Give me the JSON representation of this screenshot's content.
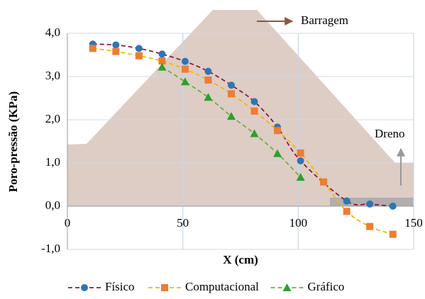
{
  "chart_data": {
    "type": "line",
    "xlabel": "X (cm)",
    "ylabel": "Poro-pressão (KPa)",
    "annotations": [
      "Barragem",
      "Dreno"
    ],
    "xlim": [
      0,
      150
    ],
    "xticks": [
      0,
      50,
      100,
      150
    ],
    "ylim": [
      -1,
      4.5
    ],
    "yticks": [
      {
        "value": -1,
        "label": "-1,0"
      },
      {
        "value": 0,
        "label": "0,0"
      },
      {
        "value": 1,
        "label": "1,0"
      },
      {
        "value": 2,
        "label": "2,0"
      },
      {
        "value": 3,
        "label": "3,0"
      },
      {
        "value": 4,
        "label": "4,0"
      }
    ],
    "grid": true,
    "legend": "bottom",
    "series": [
      {
        "name": "Físico",
        "color": "#2e75b6",
        "line_color": "#8b1a3a",
        "marker": "circle",
        "x": [
          11,
          21,
          31,
          41,
          51,
          61,
          71,
          81,
          91,
          101,
          121,
          131,
          141
        ],
        "values": [
          3.75,
          3.73,
          3.65,
          3.52,
          3.35,
          3.12,
          2.8,
          2.42,
          1.83,
          1.05,
          0.12,
          0.05,
          0.0
        ]
      },
      {
        "name": "Computacional",
        "color": "#ed7d31",
        "line_color": "#f2b800",
        "marker": "square",
        "x": [
          11,
          21,
          31,
          41,
          51,
          61,
          71,
          81,
          91,
          101,
          111,
          121,
          131,
          141
        ],
        "values": [
          3.65,
          3.58,
          3.48,
          3.36,
          3.17,
          2.92,
          2.6,
          2.2,
          1.75,
          1.23,
          0.56,
          -0.12,
          -0.47,
          -0.65
        ]
      },
      {
        "name": "Gráfico",
        "color": "#2ca02c",
        "line_color": "#70ad47",
        "marker": "triangle",
        "x": [
          41,
          51,
          61,
          71,
          81,
          91,
          101
        ],
        "values": [
          3.22,
          2.88,
          2.52,
          2.08,
          1.68,
          1.22,
          0.67
        ]
      }
    ]
  }
}
